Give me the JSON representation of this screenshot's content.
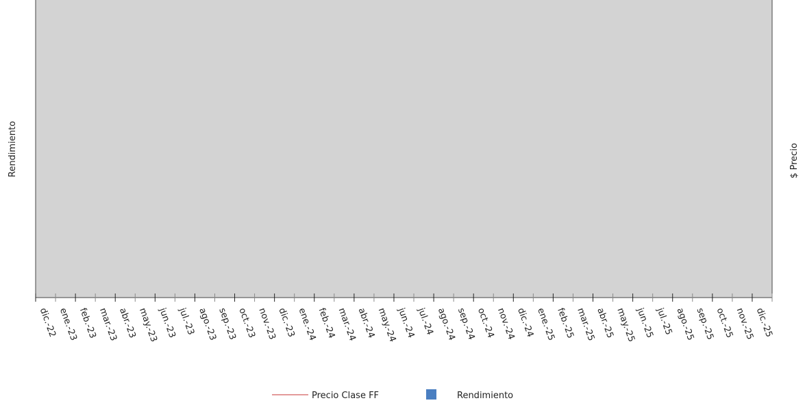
{
  "chart_data": {
    "type": "bar-line",
    "y_label": "Rendimiento",
    "y2_label": "$ Precio",
    "categories": [
      "dic.-22",
      "ene.-23",
      "feb.-23",
      "mar.-23",
      "abr.-23",
      "may.-23",
      "jun.-23",
      "jul.-23",
      "ago.-23",
      "sep.-23",
      "oct.-23",
      "nov.-23",
      "dic.-23",
      "ene.-24",
      "feb.-24",
      "mar.-24",
      "abr.-24",
      "may.-24",
      "jun.-24",
      "jul.-24",
      "ago.-24",
      "sep.-24",
      "oct.-24",
      "nov.-24",
      "dic.-24",
      "ene.-25",
      "feb.-25",
      "mar.-25",
      "abr.-25",
      "may.-25",
      "jun.-25",
      "jul.-25",
      "ago.-25",
      "sep.-25",
      "oct.-25",
      "nov.-25",
      "dic.-25"
    ],
    "series": [
      {
        "name": "Precio Clase FF",
        "color": "#e39a9a",
        "kind": "line",
        "axis": "y2",
        "values": [
          null,
          null,
          null,
          null,
          null,
          null,
          null,
          null,
          null,
          null,
          null,
          null,
          null,
          null,
          null,
          null,
          null,
          null,
          null,
          null,
          null,
          null,
          null,
          null,
          null,
          null,
          null,
          null,
          null,
          null,
          null,
          null,
          null,
          null,
          null,
          null,
          null
        ]
      },
      {
        "name": "Rendimiento",
        "color": "#4a7fc1",
        "kind": "bar",
        "values": [
          null,
          null,
          null,
          null,
          null,
          null,
          null,
          null,
          null,
          null,
          null,
          null,
          null,
          null,
          null,
          null,
          null,
          null,
          null,
          null,
          null,
          null,
          null,
          null,
          null,
          null,
          null,
          null,
          null,
          null,
          null,
          null,
          null,
          null,
          null,
          null,
          null
        ]
      }
    ]
  }
}
